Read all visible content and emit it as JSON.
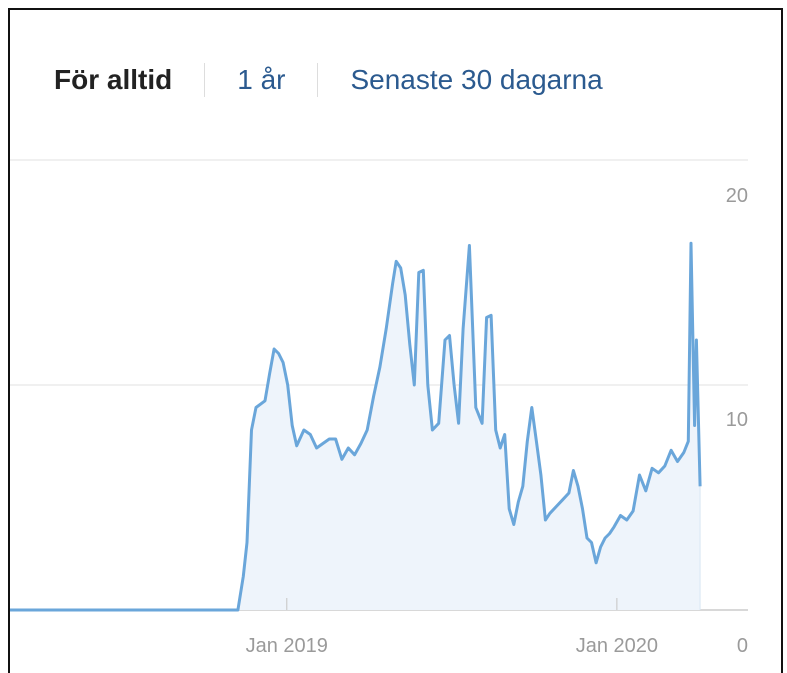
{
  "tabs": [
    {
      "label": "För alltid",
      "active": true
    },
    {
      "label": "1 år",
      "active": false
    },
    {
      "label": "Senaste 30 dagarna",
      "active": false
    }
  ],
  "colors": {
    "line": "#6aa6da",
    "fill": "#eef4fb",
    "grid": "#e6e6e6",
    "axis": "#cccccc"
  },
  "chart_data": {
    "type": "area",
    "title": "",
    "xlabel": "",
    "ylabel": "",
    "y_axis_position": "right",
    "grid": true,
    "ylim": [
      0,
      20
    ],
    "y_ticks": [
      {
        "value": 20,
        "label": "20"
      },
      {
        "value": 10,
        "label": "10"
      },
      {
        "value": 0,
        "label": "0"
      }
    ],
    "xlim": [
      "2018-03-01",
      "2020-05-25"
    ],
    "x_ticks": [
      {
        "value": "2019-01-01",
        "label": "Jan 2019"
      },
      {
        "value": "2020-01-01",
        "label": "Jan 2020"
      }
    ],
    "series": [
      {
        "points": [
          [
            "2018-03-01",
            0
          ],
          [
            "2018-10-28",
            0
          ],
          [
            "2018-11-08",
            0
          ],
          [
            "2018-11-14",
            1.5
          ],
          [
            "2018-11-18",
            3
          ],
          [
            "2018-11-23",
            8
          ],
          [
            "2018-11-28",
            9
          ],
          [
            "2018-12-08",
            9.3
          ],
          [
            "2018-12-13",
            10.5
          ],
          [
            "2018-12-18",
            11.6
          ],
          [
            "2018-12-23",
            11.4
          ],
          [
            "2018-12-28",
            11
          ],
          [
            "2019-01-02",
            10
          ],
          [
            "2019-01-07",
            8.2
          ],
          [
            "2019-01-12",
            7.3
          ],
          [
            "2019-01-20",
            8
          ],
          [
            "2019-01-27",
            7.8
          ],
          [
            "2019-02-03",
            7.2
          ],
          [
            "2019-02-10",
            7.4
          ],
          [
            "2019-02-17",
            7.6
          ],
          [
            "2019-02-24",
            7.6
          ],
          [
            "2019-03-03",
            6.7
          ],
          [
            "2019-03-10",
            7.2
          ],
          [
            "2019-03-17",
            6.9
          ],
          [
            "2019-03-24",
            7.4
          ],
          [
            "2019-03-31",
            8.0
          ],
          [
            "2019-04-07",
            9.5
          ],
          [
            "2019-04-14",
            10.8
          ],
          [
            "2019-04-21",
            12.5
          ],
          [
            "2019-04-28",
            14.5
          ],
          [
            "2019-05-02",
            15.5
          ],
          [
            "2019-05-07",
            15.2
          ],
          [
            "2019-05-12",
            14
          ],
          [
            "2019-05-17",
            11.8
          ],
          [
            "2019-05-22",
            10
          ],
          [
            "2019-05-27",
            15
          ],
          [
            "2019-06-01",
            15.1
          ],
          [
            "2019-06-06",
            10
          ],
          [
            "2019-06-11",
            8
          ],
          [
            "2019-06-18",
            8.3
          ],
          [
            "2019-06-25",
            12
          ],
          [
            "2019-06-30",
            12.2
          ],
          [
            "2019-07-05",
            10
          ],
          [
            "2019-07-10",
            8.3
          ],
          [
            "2019-07-15",
            12.5
          ],
          [
            "2019-07-22",
            16.2
          ],
          [
            "2019-07-29",
            9
          ],
          [
            "2019-08-05",
            8.3
          ],
          [
            "2019-08-10",
            13
          ],
          [
            "2019-08-15",
            13.1
          ],
          [
            "2019-08-20",
            8
          ],
          [
            "2019-08-25",
            7.2
          ],
          [
            "2019-08-30",
            7.8
          ],
          [
            "2019-09-04",
            4.5
          ],
          [
            "2019-09-09",
            3.8
          ],
          [
            "2019-09-14",
            4.8
          ],
          [
            "2019-09-19",
            5.5
          ],
          [
            "2019-09-24",
            7.5
          ],
          [
            "2019-09-29",
            9
          ],
          [
            "2019-10-04",
            7.5
          ],
          [
            "2019-10-09",
            6
          ],
          [
            "2019-10-14",
            4
          ],
          [
            "2019-10-19",
            4.3
          ],
          [
            "2019-10-26",
            4.6
          ],
          [
            "2019-11-02",
            4.9
          ],
          [
            "2019-11-09",
            5.2
          ],
          [
            "2019-11-14",
            6.2
          ],
          [
            "2019-11-19",
            5.5
          ],
          [
            "2019-11-24",
            4.5
          ],
          [
            "2019-11-29",
            3.2
          ],
          [
            "2019-12-04",
            3
          ],
          [
            "2019-12-09",
            2.1
          ],
          [
            "2019-12-14",
            2.8
          ],
          [
            "2019-12-19",
            3.2
          ],
          [
            "2019-12-24",
            3.4
          ],
          [
            "2019-12-29",
            3.7
          ],
          [
            "2020-01-05",
            4.2
          ],
          [
            "2020-01-12",
            4.0
          ],
          [
            "2020-01-19",
            4.4
          ],
          [
            "2020-01-26",
            6.0
          ],
          [
            "2020-02-02",
            5.3
          ],
          [
            "2020-02-09",
            6.3
          ],
          [
            "2020-02-16",
            6.1
          ],
          [
            "2020-02-23",
            6.4
          ],
          [
            "2020-03-01",
            7.1
          ],
          [
            "2020-03-08",
            6.6
          ],
          [
            "2020-03-15",
            7.0
          ],
          [
            "2020-03-20",
            7.5
          ],
          [
            "2020-03-23",
            16.3
          ],
          [
            "2020-03-27",
            8.2
          ],
          [
            "2020-03-29",
            12.0
          ],
          [
            "2020-04-02",
            5.5
          ]
        ]
      }
    ]
  }
}
